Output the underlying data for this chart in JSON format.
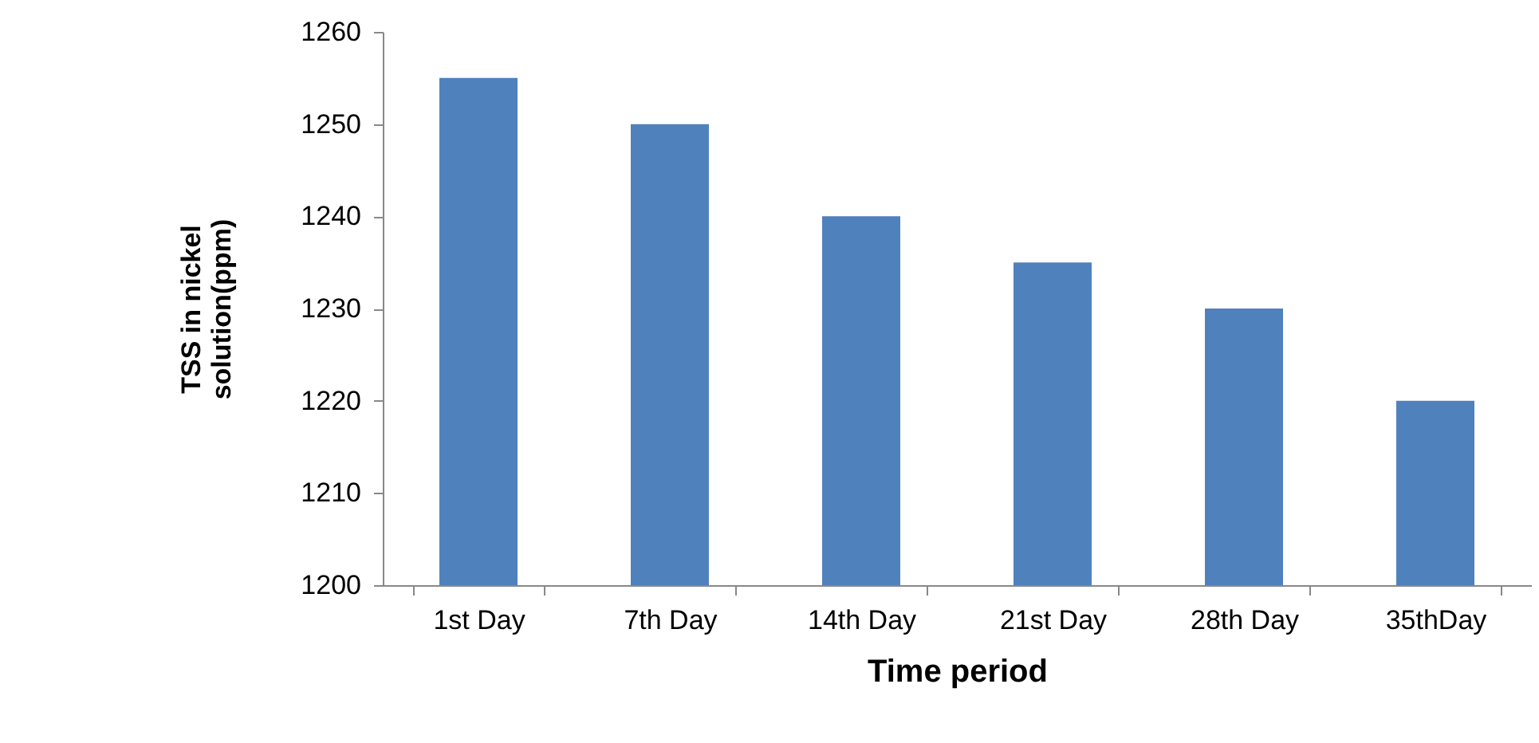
{
  "chart_data": {
    "type": "bar",
    "xlabel": "Time period",
    "ylabel": "TSS in nickel solution(ppm)",
    "categories": [
      "1st Day",
      "7th Day",
      "14th Day",
      "21st Day",
      "28th Day",
      "35thDay"
    ],
    "values": [
      1255,
      1250,
      1240,
      1235,
      1230,
      1220
    ],
    "color": "#4f81bd",
    "ylim": [
      1200,
      1260
    ],
    "yticks": [
      1200,
      1210,
      1220,
      1230,
      1240,
      1250,
      1260
    ],
    "grid": false,
    "legend": false
  }
}
